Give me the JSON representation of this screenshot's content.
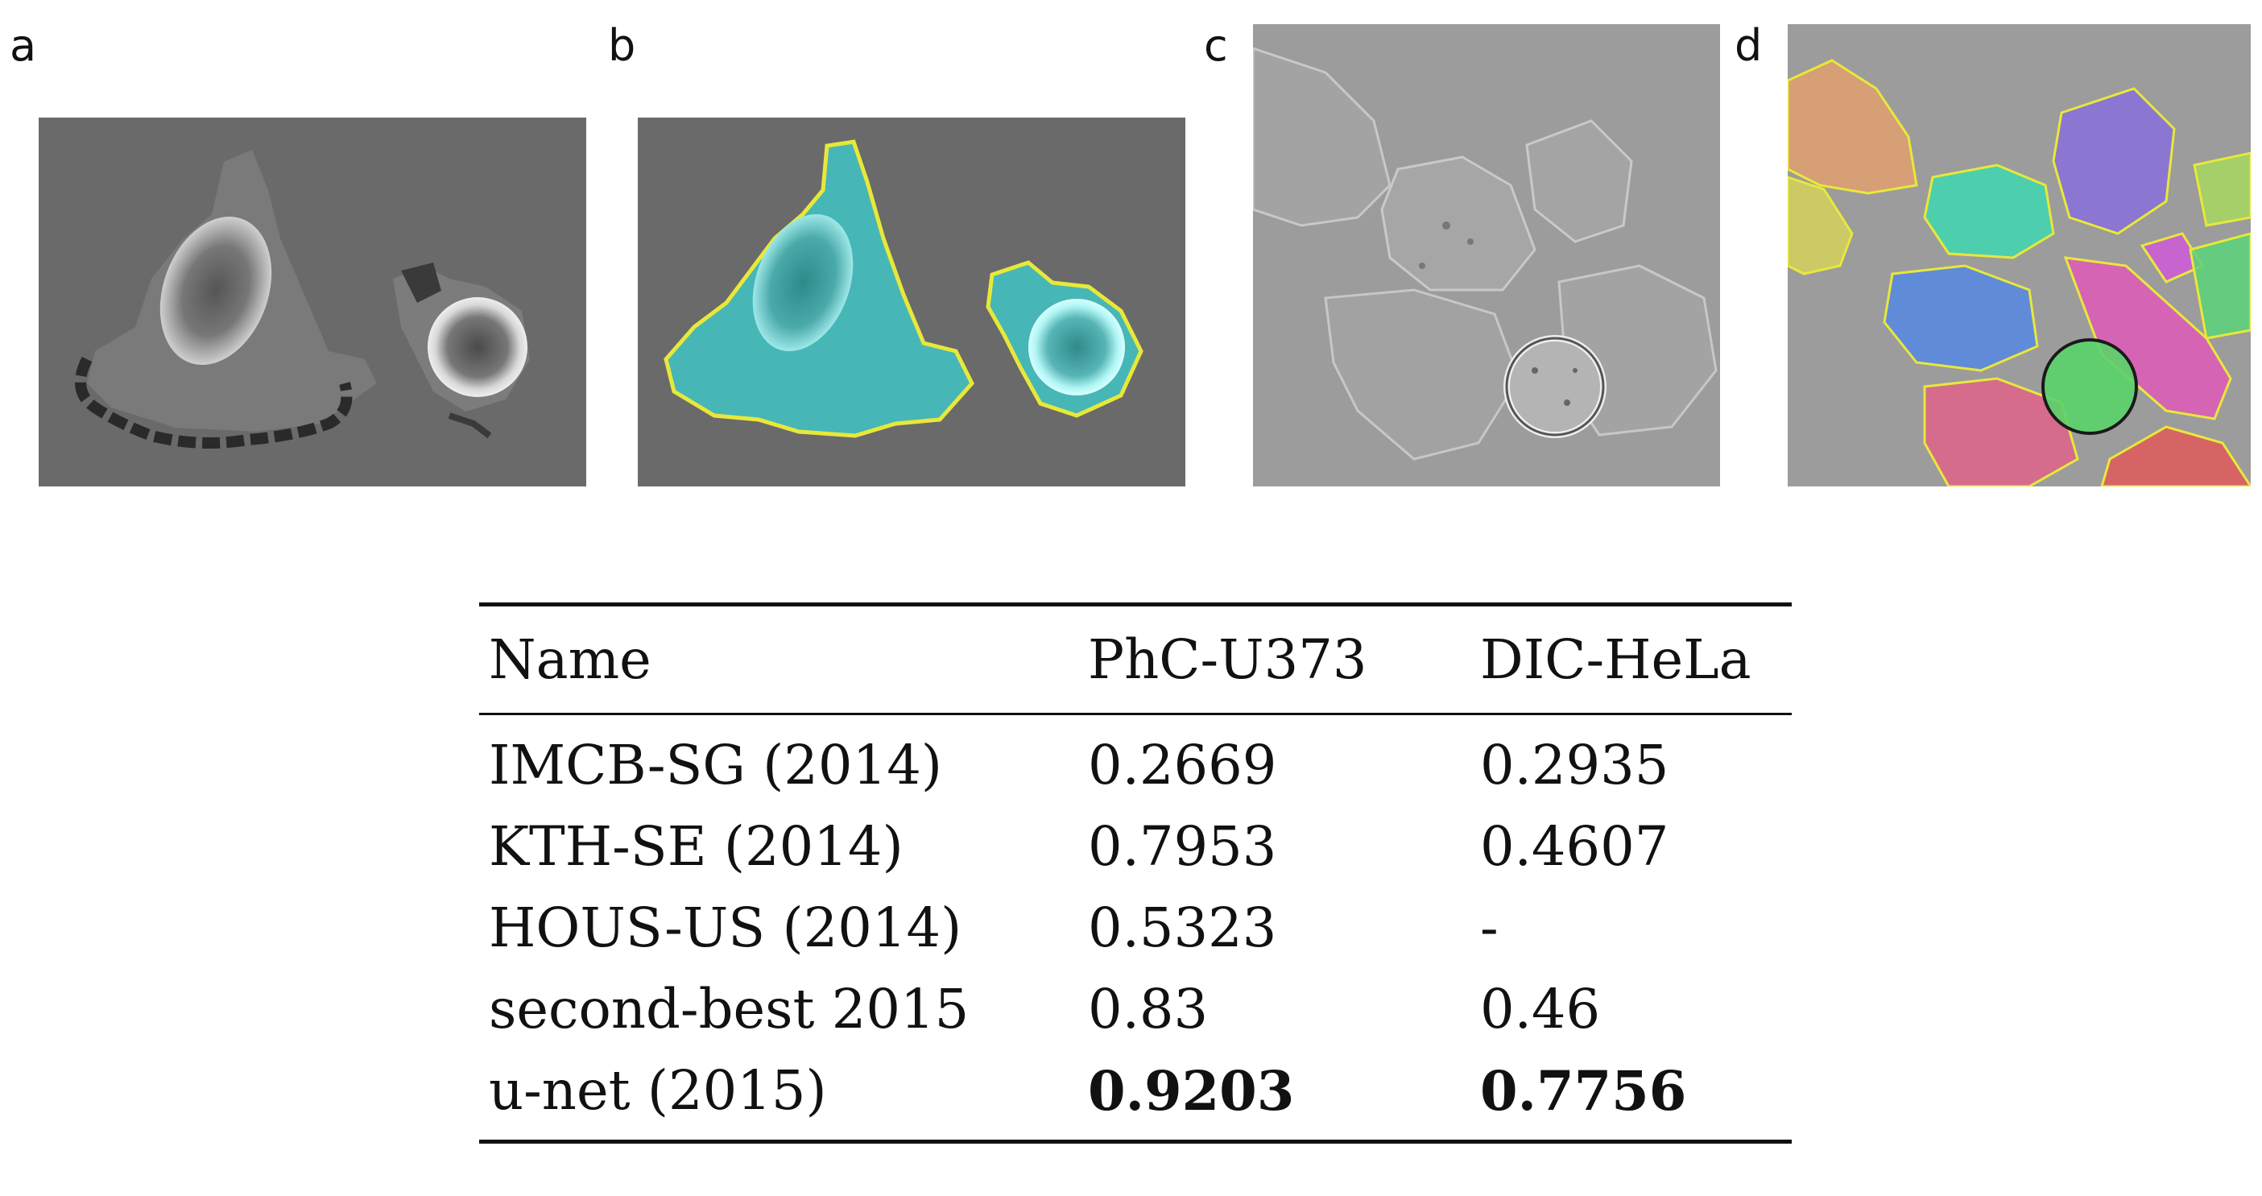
{
  "panels": [
    {
      "letter": "a",
      "description_icon": "microscopy-phc-u373-raw"
    },
    {
      "letter": "b",
      "description_icon": "microscopy-phc-u373-segmented"
    },
    {
      "letter": "c",
      "description_icon": "microscopy-dic-hela-raw"
    },
    {
      "letter": "d",
      "description_icon": "microscopy-dic-hela-segmented"
    }
  ],
  "table": {
    "headers": [
      "Name",
      "PhC-U373",
      "DIC-HeLa"
    ],
    "rows": [
      {
        "name": "IMCB-SG (2014)",
        "phc": "0.2669",
        "dic": "0.2935"
      },
      {
        "name": "KTH-SE (2014)",
        "phc": "0.7953",
        "dic": "0.4607"
      },
      {
        "name": "HOUS-US (2014)",
        "phc": "0.5323",
        "dic": "-"
      },
      {
        "name": "second-best 2015",
        "phc": "0.83",
        "dic": "0.46"
      },
      {
        "name": "u-net (2015)",
        "phc": "0.9203",
        "dic": "0.7756"
      }
    ]
  },
  "colors": {
    "segmentation_cyan": "#3fc9c9",
    "outline_yellow": "#e8e83a"
  }
}
